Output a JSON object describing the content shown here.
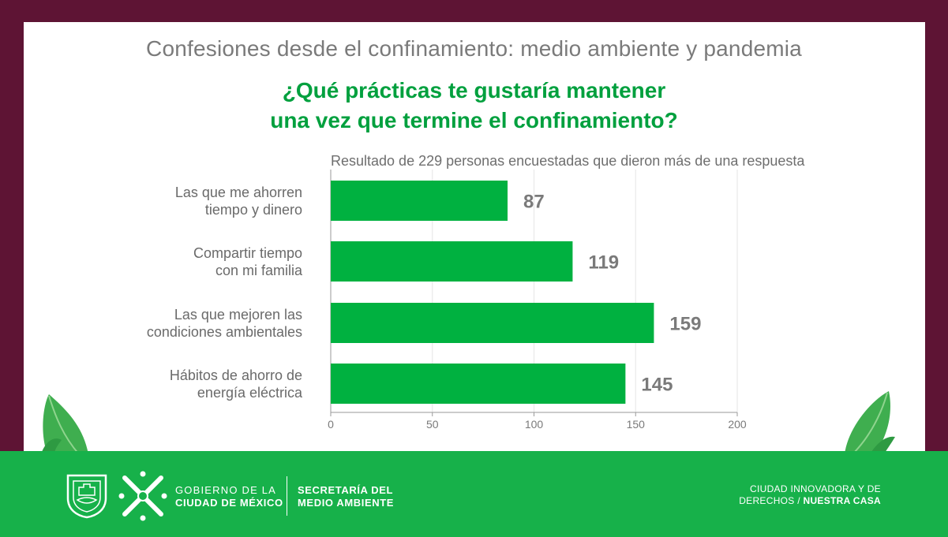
{
  "header": {
    "supertitle": "Confesiones desde el confinamiento: medio ambiente y pandemia",
    "question_line1": "¿Qué prácticas te gustaría mantener",
    "question_line2": "una vez que termine el confinamiento?"
  },
  "chart_data": {
    "type": "bar",
    "orientation": "horizontal",
    "subtitle": "Resultado de 229 personas encuestadas que dieron más de una respuesta",
    "categories": [
      [
        "Las que me ahorren",
        "tiempo y dinero"
      ],
      [
        "Compartir tiempo",
        "con mi familia"
      ],
      [
        "Las que mejoren las",
        "condiciones ambientales"
      ],
      [
        "Hábitos de ahorro de",
        "energía eléctrica"
      ]
    ],
    "values": [
      87,
      119,
      159,
      145
    ],
    "xlim": [
      0,
      200
    ],
    "xticks": [
      0,
      50,
      100,
      150,
      200
    ],
    "grid": true,
    "bar_color": "#00b140",
    "value_label_color": "#7a7a7a"
  },
  "footer": {
    "gob_line1": "GOBIERNO DE LA",
    "gob_line2": "CIUDAD DE MÉXICO",
    "sec_line1": "SECRETARÍA DEL",
    "sec_line2": "MEDIO AMBIENTE",
    "right_line1": "CIUDAD INNOVADORA Y DE",
    "right_line2_a": "DERECHOS / ",
    "right_line2_b": "NUESTRA CASA"
  },
  "colors": {
    "frame": "#5e1434",
    "green": "#17b14a",
    "title_green": "#00a03e"
  }
}
